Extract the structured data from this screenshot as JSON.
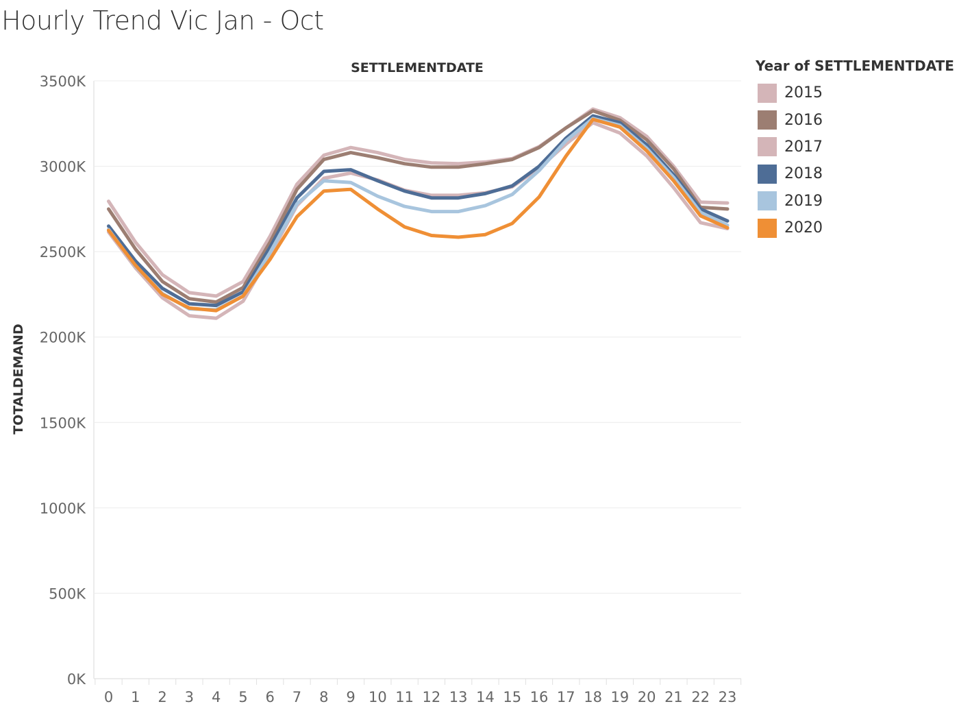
{
  "chart_data": {
    "type": "line",
    "title": "Hourly Trend Vic Jan - Oct",
    "top_axis_label": "SETTLEMENTDATE",
    "ylabel": "TOTALDEMAND",
    "ylim": [
      0,
      3500000
    ],
    "y_ticks": [
      0,
      500000,
      1000000,
      1500000,
      2000000,
      2500000,
      3000000,
      3500000
    ],
    "y_tick_labels": [
      "0K",
      "500K",
      "1000K",
      "1500K",
      "2000K",
      "2500K",
      "3000K",
      "3500K"
    ],
    "categories": [
      "0",
      "1",
      "2",
      "3",
      "4",
      "5",
      "6",
      "7",
      "8",
      "9",
      "10",
      "11",
      "12",
      "13",
      "14",
      "15",
      "16",
      "17",
      "18",
      "19",
      "20",
      "21",
      "22",
      "23"
    ],
    "grid": true,
    "legend": {
      "title": "Year of SETTLEMENTDATE",
      "position": "right"
    },
    "series": [
      {
        "name": "2015",
        "color": "#d4b5b8",
        "values": [
          2795000,
          2555000,
          2365000,
          2260000,
          2240000,
          2325000,
          2590000,
          2895000,
          3065000,
          3110000,
          3080000,
          3040000,
          3020000,
          3015000,
          3025000,
          3045000,
          3115000,
          3225000,
          3335000,
          3285000,
          3175000,
          3000000,
          2790000,
          2785000
        ]
      },
      {
        "name": "2016",
        "color": "#9c7e72",
        "values": [
          2750000,
          2515000,
          2325000,
          2225000,
          2205000,
          2290000,
          2555000,
          2865000,
          3040000,
          3080000,
          3050000,
          3015000,
          2995000,
          2995000,
          3015000,
          3040000,
          3110000,
          3225000,
          3325000,
          3270000,
          3155000,
          2985000,
          2760000,
          2750000
        ]
      },
      {
        "name": "2017",
        "color": "#d4b5b8",
        "values": [
          2615000,
          2405000,
          2230000,
          2125000,
          2110000,
          2210000,
          2480000,
          2770000,
          2930000,
          2960000,
          2920000,
          2860000,
          2830000,
          2830000,
          2845000,
          2880000,
          2990000,
          3130000,
          3255000,
          3195000,
          3060000,
          2875000,
          2670000,
          2635000
        ]
      },
      {
        "name": "2018",
        "color": "#4e6d96",
        "values": [
          2650000,
          2445000,
          2285000,
          2195000,
          2185000,
          2265000,
          2525000,
          2815000,
          2970000,
          2980000,
          2915000,
          2855000,
          2815000,
          2815000,
          2840000,
          2885000,
          3000000,
          3165000,
          3295000,
          3255000,
          3125000,
          2950000,
          2750000,
          2680000
        ]
      },
      {
        "name": "2019",
        "color": "#a8c5de",
        "values": [
          2630000,
          2415000,
          2255000,
          2165000,
          2160000,
          2240000,
          2495000,
          2780000,
          2915000,
          2905000,
          2825000,
          2765000,
          2735000,
          2735000,
          2770000,
          2835000,
          2975000,
          3150000,
          3280000,
          3240000,
          3105000,
          2935000,
          2730000,
          2655000
        ]
      },
      {
        "name": "2020",
        "color": "#ef8f35",
        "values": [
          2625000,
          2420000,
          2250000,
          2170000,
          2155000,
          2240000,
          2455000,
          2705000,
          2855000,
          2865000,
          2750000,
          2645000,
          2595000,
          2585000,
          2600000,
          2665000,
          2820000,
          3060000,
          3275000,
          3230000,
          3090000,
          2915000,
          2710000,
          2640000
        ]
      }
    ]
  }
}
